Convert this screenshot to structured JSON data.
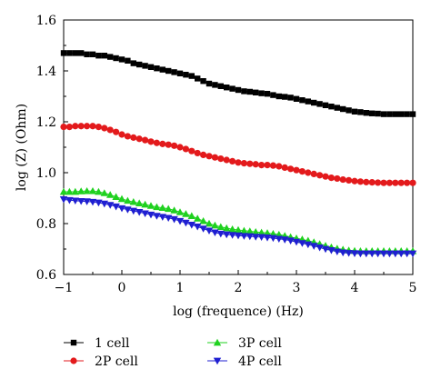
{
  "chart_data": {
    "type": "line",
    "xlabel": "log (frequence) (Hz)",
    "ylabel": "log (Z) (Ohm)",
    "xlim": [
      -1,
      5
    ],
    "ylim": [
      0.6,
      1.6
    ],
    "xticks": [
      "−1",
      "0",
      "1",
      "2",
      "3",
      "4",
      "5"
    ],
    "xtick_values": [
      -1,
      0,
      1,
      2,
      3,
      4,
      5
    ],
    "yticks": [
      "0.6",
      "0.8",
      "1.0",
      "1.2",
      "1.4",
      "1.6"
    ],
    "ytick_values": [
      0.6,
      0.8,
      1.0,
      1.2,
      1.4,
      1.6
    ],
    "grid": false,
    "legend_position": "bottom",
    "series": [
      {
        "name": "1 cell",
        "color": "#000000",
        "marker": "square",
        "points": [
          [
            -1.0,
            1.47
          ],
          [
            -0.9,
            1.47
          ],
          [
            -0.8,
            1.47
          ],
          [
            -0.7,
            1.47
          ],
          [
            -0.6,
            1.465
          ],
          [
            -0.5,
            1.465
          ],
          [
            -0.4,
            1.46
          ],
          [
            -0.3,
            1.46
          ],
          [
            -0.2,
            1.455
          ],
          [
            -0.1,
            1.45
          ],
          [
            0.0,
            1.445
          ],
          [
            0.1,
            1.44
          ],
          [
            0.2,
            1.43
          ],
          [
            0.3,
            1.425
          ],
          [
            0.4,
            1.42
          ],
          [
            0.5,
            1.415
          ],
          [
            0.6,
            1.41
          ],
          [
            0.7,
            1.405
          ],
          [
            0.8,
            1.4
          ],
          [
            0.9,
            1.395
          ],
          [
            1.0,
            1.39
          ],
          [
            1.1,
            1.385
          ],
          [
            1.2,
            1.38
          ],
          [
            1.3,
            1.37
          ],
          [
            1.4,
            1.36
          ],
          [
            1.5,
            1.35
          ],
          [
            1.6,
            1.345
          ],
          [
            1.7,
            1.34
          ],
          [
            1.8,
            1.335
          ],
          [
            1.9,
            1.33
          ],
          [
            2.0,
            1.325
          ],
          [
            2.1,
            1.32
          ],
          [
            2.2,
            1.318
          ],
          [
            2.3,
            1.315
          ],
          [
            2.4,
            1.312
          ],
          [
            2.5,
            1.31
          ],
          [
            2.6,
            1.305
          ],
          [
            2.7,
            1.3
          ],
          [
            2.8,
            1.298
          ],
          [
            2.9,
            1.295
          ],
          [
            3.0,
            1.29
          ],
          [
            3.1,
            1.285
          ],
          [
            3.2,
            1.28
          ],
          [
            3.3,
            1.275
          ],
          [
            3.4,
            1.27
          ],
          [
            3.5,
            1.265
          ],
          [
            3.6,
            1.26
          ],
          [
            3.7,
            1.255
          ],
          [
            3.8,
            1.25
          ],
          [
            3.9,
            1.245
          ],
          [
            4.0,
            1.24
          ],
          [
            4.1,
            1.238
          ],
          [
            4.2,
            1.235
          ],
          [
            4.3,
            1.233
          ],
          [
            4.4,
            1.232
          ],
          [
            4.5,
            1.23
          ],
          [
            4.6,
            1.23
          ],
          [
            4.7,
            1.23
          ],
          [
            4.8,
            1.23
          ],
          [
            4.9,
            1.23
          ],
          [
            5.0,
            1.23
          ]
        ]
      },
      {
        "name": "2P cell",
        "color": "#e31a1c",
        "marker": "circle",
        "points": [
          [
            -1.0,
            1.18
          ],
          [
            -0.9,
            1.18
          ],
          [
            -0.8,
            1.183
          ],
          [
            -0.7,
            1.183
          ],
          [
            -0.6,
            1.183
          ],
          [
            -0.5,
            1.183
          ],
          [
            -0.4,
            1.18
          ],
          [
            -0.3,
            1.175
          ],
          [
            -0.2,
            1.168
          ],
          [
            -0.1,
            1.16
          ],
          [
            0.0,
            1.15
          ],
          [
            0.1,
            1.143
          ],
          [
            0.2,
            1.138
          ],
          [
            0.3,
            1.133
          ],
          [
            0.4,
            1.128
          ],
          [
            0.5,
            1.122
          ],
          [
            0.6,
            1.117
          ],
          [
            0.7,
            1.113
          ],
          [
            0.8,
            1.11
          ],
          [
            0.9,
            1.106
          ],
          [
            1.0,
            1.1
          ],
          [
            1.1,
            1.093
          ],
          [
            1.2,
            1.085
          ],
          [
            1.3,
            1.077
          ],
          [
            1.4,
            1.07
          ],
          [
            1.5,
            1.065
          ],
          [
            1.6,
            1.06
          ],
          [
            1.7,
            1.055
          ],
          [
            1.8,
            1.05
          ],
          [
            1.9,
            1.045
          ],
          [
            2.0,
            1.04
          ],
          [
            2.1,
            1.037
          ],
          [
            2.2,
            1.035
          ],
          [
            2.3,
            1.033
          ],
          [
            2.4,
            1.03
          ],
          [
            2.5,
            1.03
          ],
          [
            2.6,
            1.028
          ],
          [
            2.7,
            1.025
          ],
          [
            2.8,
            1.02
          ],
          [
            2.9,
            1.015
          ],
          [
            3.0,
            1.01
          ],
          [
            3.1,
            1.005
          ],
          [
            3.2,
            1.0
          ],
          [
            3.3,
            0.995
          ],
          [
            3.4,
            0.99
          ],
          [
            3.5,
            0.985
          ],
          [
            3.6,
            0.98
          ],
          [
            3.7,
            0.977
          ],
          [
            3.8,
            0.973
          ],
          [
            3.9,
            0.97
          ],
          [
            4.0,
            0.967
          ],
          [
            4.1,
            0.965
          ],
          [
            4.2,
            0.963
          ],
          [
            4.3,
            0.962
          ],
          [
            4.4,
            0.961
          ],
          [
            4.5,
            0.96
          ],
          [
            4.6,
            0.96
          ],
          [
            4.7,
            0.96
          ],
          [
            4.8,
            0.96
          ],
          [
            4.9,
            0.96
          ],
          [
            5.0,
            0.96
          ]
        ]
      },
      {
        "name": "3P cell",
        "color": "#1fd11f",
        "marker": "triangle-up",
        "points": [
          [
            -1.0,
            0.925
          ],
          [
            -0.9,
            0.925
          ],
          [
            -0.8,
            0.925
          ],
          [
            -0.7,
            0.927
          ],
          [
            -0.6,
            0.928
          ],
          [
            -0.5,
            0.928
          ],
          [
            -0.4,
            0.925
          ],
          [
            -0.3,
            0.92
          ],
          [
            -0.2,
            0.913
          ],
          [
            -0.1,
            0.905
          ],
          [
            0.0,
            0.897
          ],
          [
            0.1,
            0.89
          ],
          [
            0.2,
            0.885
          ],
          [
            0.3,
            0.88
          ],
          [
            0.4,
            0.875
          ],
          [
            0.5,
            0.87
          ],
          [
            0.6,
            0.865
          ],
          [
            0.7,
            0.862
          ],
          [
            0.8,
            0.858
          ],
          [
            0.9,
            0.852
          ],
          [
            1.0,
            0.845
          ],
          [
            1.1,
            0.838
          ],
          [
            1.2,
            0.83
          ],
          [
            1.3,
            0.82
          ],
          [
            1.4,
            0.81
          ],
          [
            1.5,
            0.8
          ],
          [
            1.6,
            0.793
          ],
          [
            1.7,
            0.787
          ],
          [
            1.8,
            0.782
          ],
          [
            1.9,
            0.778
          ],
          [
            2.0,
            0.775
          ],
          [
            2.1,
            0.772
          ],
          [
            2.2,
            0.77
          ],
          [
            2.3,
            0.767
          ],
          [
            2.4,
            0.765
          ],
          [
            2.5,
            0.763
          ],
          [
            2.6,
            0.76
          ],
          [
            2.7,
            0.757
          ],
          [
            2.8,
            0.752
          ],
          [
            2.9,
            0.747
          ],
          [
            3.0,
            0.742
          ],
          [
            3.1,
            0.738
          ],
          [
            3.2,
            0.733
          ],
          [
            3.3,
            0.727
          ],
          [
            3.4,
            0.72
          ],
          [
            3.5,
            0.713
          ],
          [
            3.6,
            0.707
          ],
          [
            3.7,
            0.702
          ],
          [
            3.8,
            0.698
          ],
          [
            3.9,
            0.695
          ],
          [
            4.0,
            0.693
          ],
          [
            4.1,
            0.692
          ],
          [
            4.2,
            0.692
          ],
          [
            4.3,
            0.692
          ],
          [
            4.4,
            0.692
          ],
          [
            4.5,
            0.692
          ],
          [
            4.6,
            0.692
          ],
          [
            4.7,
            0.692
          ],
          [
            4.8,
            0.692
          ],
          [
            4.9,
            0.692
          ],
          [
            5.0,
            0.692
          ]
        ]
      },
      {
        "name": "4P cell",
        "color": "#1f1fd1",
        "marker": "triangle-down",
        "points": [
          [
            -1.0,
            0.895
          ],
          [
            -0.9,
            0.892
          ],
          [
            -0.8,
            0.89
          ],
          [
            -0.7,
            0.888
          ],
          [
            -0.6,
            0.887
          ],
          [
            -0.5,
            0.885
          ],
          [
            -0.4,
            0.882
          ],
          [
            -0.3,
            0.878
          ],
          [
            -0.2,
            0.873
          ],
          [
            -0.1,
            0.867
          ],
          [
            0.0,
            0.86
          ],
          [
            0.1,
            0.855
          ],
          [
            0.2,
            0.85
          ],
          [
            0.3,
            0.845
          ],
          [
            0.4,
            0.84
          ],
          [
            0.5,
            0.835
          ],
          [
            0.6,
            0.83
          ],
          [
            0.7,
            0.826
          ],
          [
            0.8,
            0.822
          ],
          [
            0.9,
            0.817
          ],
          [
            1.0,
            0.81
          ],
          [
            1.1,
            0.803
          ],
          [
            1.2,
            0.795
          ],
          [
            1.3,
            0.788
          ],
          [
            1.4,
            0.78
          ],
          [
            1.5,
            0.772
          ],
          [
            1.6,
            0.765
          ],
          [
            1.7,
            0.76
          ],
          [
            1.8,
            0.757
          ],
          [
            1.9,
            0.755
          ],
          [
            2.0,
            0.753
          ],
          [
            2.1,
            0.751
          ],
          [
            2.2,
            0.75
          ],
          [
            2.3,
            0.748
          ],
          [
            2.4,
            0.747
          ],
          [
            2.5,
            0.745
          ],
          [
            2.6,
            0.743
          ],
          [
            2.7,
            0.74
          ],
          [
            2.8,
            0.737
          ],
          [
            2.9,
            0.733
          ],
          [
            3.0,
            0.728
          ],
          [
            3.1,
            0.723
          ],
          [
            3.2,
            0.718
          ],
          [
            3.3,
            0.712
          ],
          [
            3.4,
            0.706
          ],
          [
            3.5,
            0.7
          ],
          [
            3.6,
            0.695
          ],
          [
            3.7,
            0.69
          ],
          [
            3.8,
            0.686
          ],
          [
            3.9,
            0.684
          ],
          [
            4.0,
            0.683
          ],
          [
            4.1,
            0.682
          ],
          [
            4.2,
            0.682
          ],
          [
            4.3,
            0.682
          ],
          [
            4.4,
            0.682
          ],
          [
            4.5,
            0.682
          ],
          [
            4.6,
            0.682
          ],
          [
            4.7,
            0.682
          ],
          [
            4.8,
            0.682
          ],
          [
            4.9,
            0.682
          ],
          [
            5.0,
            0.682
          ]
        ]
      }
    ]
  }
}
